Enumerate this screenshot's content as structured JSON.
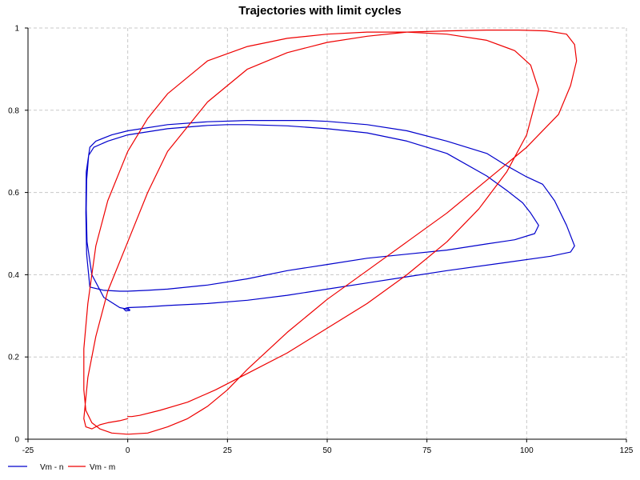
{
  "chart_data": {
    "type": "line",
    "title": "Trajectories with limit cycles",
    "xlabel": "",
    "ylabel": "",
    "xlim": [
      -25,
      125
    ],
    "ylim": [
      0,
      1
    ],
    "x_ticks": [
      -25,
      0,
      25,
      50,
      75,
      100,
      125
    ],
    "y_ticks": [
      0,
      0.2,
      0.4,
      0.6,
      0.8,
      1
    ],
    "grid": true,
    "legend_position": "bottom-left",
    "series": [
      {
        "name": "Vm - n",
        "color": "#0000cc",
        "x": [
          0.5,
          -2,
          -6,
          -9,
          -10.2,
          -10.4,
          -10.3,
          -9.8,
          -8.5,
          -5,
          0,
          10,
          20,
          25,
          30,
          40,
          50,
          60,
          70,
          80,
          90,
          95,
          99,
          101,
          103,
          102,
          97,
          90,
          80,
          70,
          60,
          50,
          40,
          30,
          20,
          10,
          5,
          0,
          -2,
          -6,
          -9.5,
          -10.3,
          -10.5,
          -10.4,
          -9.5,
          -8,
          -4,
          0,
          10,
          20,
          30,
          40,
          45,
          50,
          60,
          70,
          80,
          90,
          95,
          100,
          104,
          107,
          110,
          112,
          111,
          106,
          95,
          80,
          70,
          60,
          50,
          40,
          30,
          20,
          10,
          5,
          0,
          -1,
          -0.5,
          0.5,
          0
        ],
        "y": [
          0.315,
          0.32,
          0.345,
          0.4,
          0.48,
          0.56,
          0.63,
          0.69,
          0.71,
          0.725,
          0.74,
          0.755,
          0.763,
          0.765,
          0.765,
          0.762,
          0.755,
          0.745,
          0.725,
          0.695,
          0.64,
          0.605,
          0.575,
          0.55,
          0.52,
          0.5,
          0.485,
          0.475,
          0.46,
          0.45,
          0.44,
          0.425,
          0.41,
          0.39,
          0.375,
          0.365,
          0.362,
          0.36,
          0.36,
          0.362,
          0.37,
          0.45,
          0.55,
          0.65,
          0.71,
          0.725,
          0.74,
          0.75,
          0.765,
          0.772,
          0.775,
          0.775,
          0.775,
          0.773,
          0.765,
          0.75,
          0.725,
          0.695,
          0.665,
          0.638,
          0.62,
          0.58,
          0.52,
          0.47,
          0.455,
          0.445,
          0.43,
          0.41,
          0.395,
          0.38,
          0.365,
          0.35,
          0.338,
          0.33,
          0.325,
          0.322,
          0.32,
          0.317,
          0.312,
          0.313,
          0.32
        ]
      },
      {
        "name": "Vm - m",
        "color": "#ee0000",
        "x": [
          0,
          1,
          3,
          8,
          15,
          22,
          30,
          40,
          50,
          60,
          70,
          80,
          88,
          95,
          100,
          103,
          101,
          97,
          90,
          80,
          70,
          60,
          50,
          40,
          30,
          20,
          10,
          5,
          0,
          -5,
          -8,
          -10,
          -11,
          -11,
          -10.5,
          -9,
          -7,
          -4,
          0,
          5,
          10,
          15,
          20,
          25,
          30,
          40,
          50,
          60,
          70,
          80,
          90,
          100,
          108,
          111,
          112.5,
          112,
          110,
          105,
          98,
          90,
          80,
          70,
          60,
          50,
          40,
          30,
          20,
          10,
          5,
          0,
          -5,
          -8,
          -10,
          -11,
          -10.5,
          -9,
          -7,
          -5,
          -2,
          0
        ],
        "y": [
          0.055,
          0.055,
          0.058,
          0.07,
          0.09,
          0.12,
          0.16,
          0.21,
          0.27,
          0.33,
          0.4,
          0.48,
          0.56,
          0.65,
          0.74,
          0.85,
          0.91,
          0.945,
          0.97,
          0.985,
          0.99,
          0.99,
          0.985,
          0.975,
          0.955,
          0.92,
          0.84,
          0.78,
          0.7,
          0.58,
          0.47,
          0.33,
          0.22,
          0.12,
          0.07,
          0.04,
          0.025,
          0.015,
          0.012,
          0.015,
          0.03,
          0.05,
          0.08,
          0.12,
          0.17,
          0.26,
          0.34,
          0.41,
          0.48,
          0.55,
          0.63,
          0.71,
          0.79,
          0.86,
          0.92,
          0.96,
          0.985,
          0.993,
          0.995,
          0.995,
          0.993,
          0.99,
          0.98,
          0.965,
          0.94,
          0.9,
          0.82,
          0.7,
          0.6,
          0.48,
          0.36,
          0.25,
          0.15,
          0.05,
          0.03,
          0.025,
          0.035,
          0.04,
          0.045,
          0.05
        ]
      }
    ]
  }
}
